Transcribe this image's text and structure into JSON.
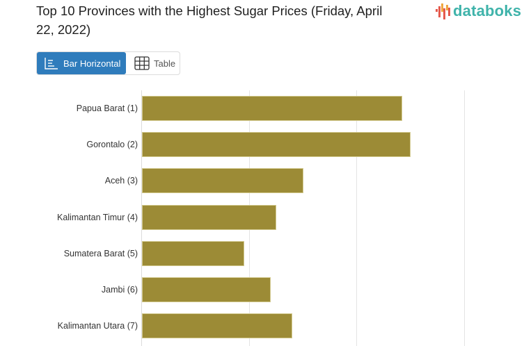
{
  "header": {
    "title": "Top 10 Provinces with the Highest Sugar Prices (Friday, April 22, 2022)",
    "logo_text": "databoks",
    "logo_icon": "databoks-bars-logo-icon"
  },
  "view_toggle": {
    "options": [
      {
        "label": "Bar Horizontal",
        "icon": "bar-horizontal-icon",
        "active": true
      },
      {
        "label": "Table",
        "icon": "table-grid-icon",
        "active": false
      }
    ]
  },
  "colors": {
    "bar": "#9c8b36",
    "active_button": "#2f7cbc",
    "logo_text": "#3fb3aa",
    "gridline": "#e4e4e4"
  },
  "chart_data": {
    "type": "bar",
    "orientation": "horizontal",
    "title": "Top 10 Provinces with the Highest Sugar Prices (Friday, April 22, 2022)",
    "categories": [
      "Papua Barat (1)",
      "Gorontalo (2)",
      "Aceh (3)",
      "Kalimantan Timur (4)",
      "Sumatera Barat (5)",
      "Jambi (6)",
      "Kalimantan Utara (7)"
    ],
    "values": [
      2.42,
      2.5,
      1.5,
      1.25,
      0.95,
      1.2,
      1.4
    ],
    "value_units_note": "values expressed in gridline-interval units; no axis tick labels visible",
    "xlabel": "",
    "ylabel": "",
    "xlim": [
      0,
      3
    ],
    "gridlines": [
      0,
      1,
      2,
      3
    ],
    "grid": true,
    "legend": null,
    "visible_rows": 7
  }
}
